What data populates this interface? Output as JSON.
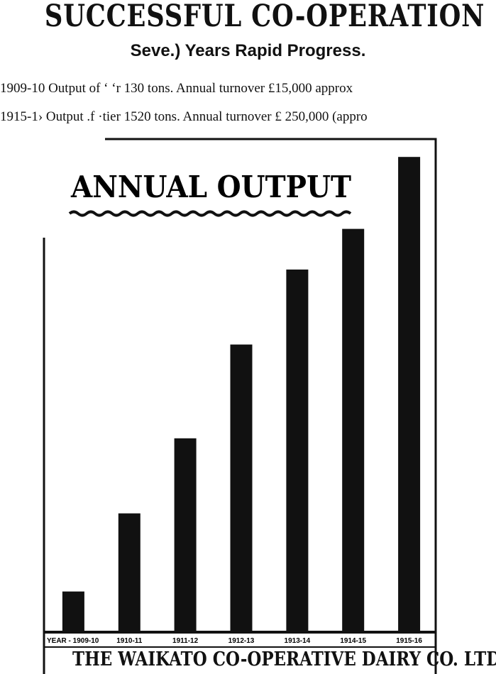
{
  "headline": "SUCCESSFUL CO-OPERATION",
  "subheadline": "Seve.) Years Rapid Progress.",
  "stats": [
    "1909-10 Output of ‘   ‘r 130 tons.  Annual turnover £15,000   approx",
    "1915-1› Output .f  ·tier 1520 tons.  Annual turnover £ 250,000 (appro"
  ],
  "chart_data": {
    "type": "bar",
    "title": "ANNUAL OUTPUT",
    "xlabel": "YEAR",
    "ylabel": "",
    "categories": [
      "YEAR - 1909-10",
      "1910-11",
      "1911-12",
      "1912-13",
      "1913-14",
      "1914-15",
      "1915-16"
    ],
    "values": [
      130,
      380,
      620,
      920,
      1160,
      1290,
      1520
    ],
    "ylim": [
      0,
      1550
    ],
    "grid": false,
    "legend": "none",
    "bar_color": "#111111"
  },
  "footer": {
    "company": "THE WAIKATO CO-OPERATIVE DAIRY CO. LTD."
  }
}
